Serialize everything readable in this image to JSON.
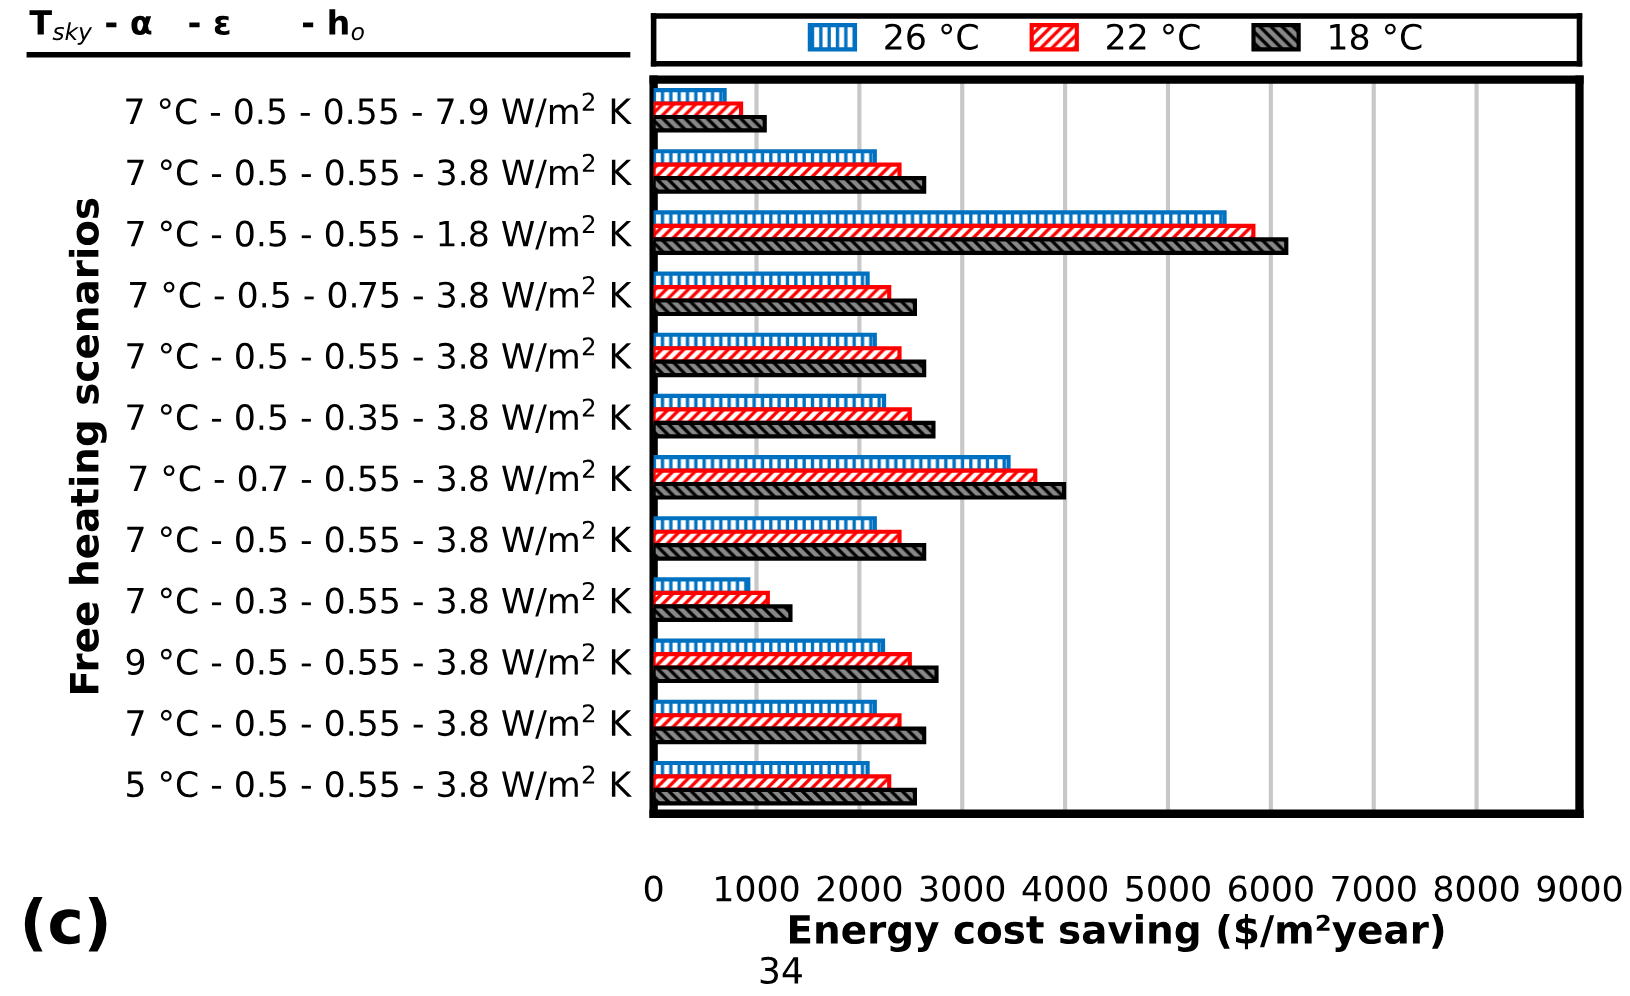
{
  "chart_data": {
    "type": "bar",
    "orientation": "horizontal",
    "xlabel": "Energy cost saving ($/m²year)",
    "ylabel": "Free heating scenarios",
    "annotations": [
      "T$_{sky}$ - α   - ε      - h$_{o}$",
      "(c)",
      "34"
    ],
    "categories": [
      "7 °C - 0.5 - 0.55 - 7.9 W/m$^{2}$ K",
      "7 °C - 0.5 - 0.55 - 3.8 W/m$^{2}$ K",
      "7 °C - 0.5 - 0.55 - 1.8 W/m$^{2}$ K",
      "7 °C - 0.5 - 0.75 - 3.8 W/m$^{2}$ K",
      "7 °C - 0.5 - 0.55 - 3.8 W/m$^{2}$ K",
      "7 °C - 0.5 - 0.35 - 3.8 W/m$^{2}$ K",
      "7 °C - 0.7 - 0.55 - 3.8 W/m$^{2}$ K",
      "7 °C - 0.5 - 0.55 - 3.8 W/m$^{2}$ K",
      "7 °C - 0.3 - 0.55 - 3.8 W/m$^{2}$ K",
      "9 °C - 0.5 - 0.55 - 3.8 W/m$^{2}$ K",
      "7 °C - 0.5 - 0.55 - 3.8 W/m$^{2}$ K",
      "5 °C - 0.5 - 0.55 - 3.8 W/m$^{2}$ K"
    ],
    "series": [
      {
        "name": "26 °C",
        "color": "#0070c0",
        "values": [
          690,
          2150,
          5550,
          2080,
          2150,
          2240,
          3450,
          2150,
          920,
          2230,
          2150,
          2080
        ]
      },
      {
        "name": "22 °C",
        "color": "#ff0000",
        "values": [
          850,
          2390,
          5830,
          2290,
          2390,
          2490,
          3710,
          2390,
          1110,
          2490,
          2390,
          2290
        ]
      },
      {
        "name": "18 °C",
        "color": "#000000",
        "values": [
          1080,
          2630,
          6150,
          2540,
          2630,
          2720,
          3990,
          2630,
          1330,
          2750,
          2630,
          2540
        ]
      }
    ],
    "xlim": [
      0,
      9000
    ],
    "xticks": [
      0,
      1000,
      2000,
      3000,
      4000,
      5000,
      6000,
      7000,
      8000,
      9000
    ],
    "grid": "x",
    "legend": "top"
  }
}
